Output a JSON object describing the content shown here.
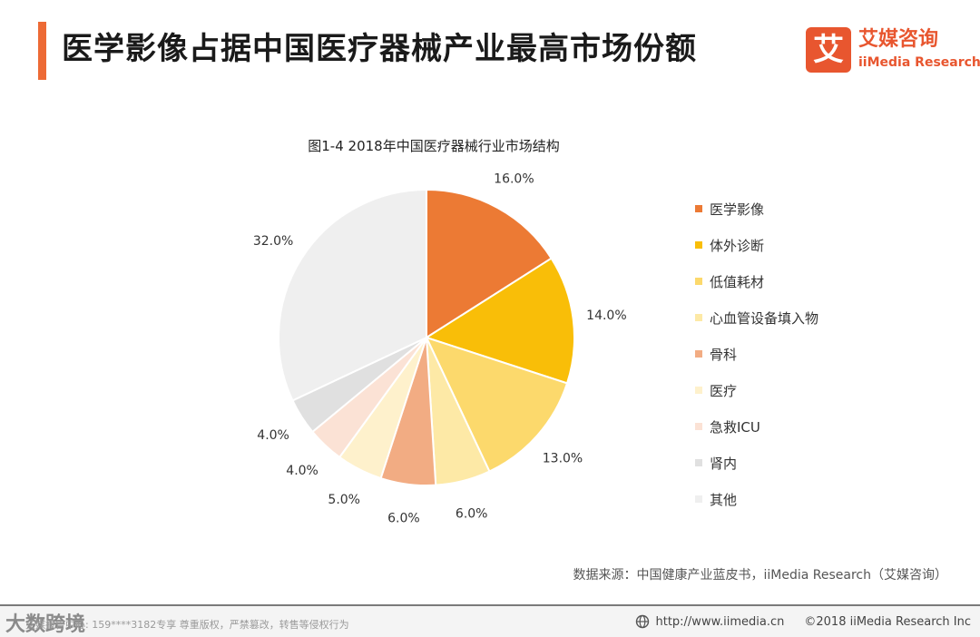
{
  "header": {
    "title": "医学影像占据中国医疗器械产业最高市场份额",
    "accent_color": "#ED6A35"
  },
  "brand": {
    "logo_char": "艾",
    "name_cn": "艾媒咨询",
    "name_en": "iiMedia Research",
    "color": "#E8562F"
  },
  "chart_data": {
    "type": "pie",
    "title": "图1-4 2018年中国医疗器械行业市场结构",
    "categories": [
      "医学影像",
      "体外诊断",
      "低值耗材",
      "心血管设备填入物",
      "骨科",
      "医疗",
      "急救ICU",
      "肾内",
      "其他"
    ],
    "values": [
      16.0,
      14.0,
      13.0,
      6.0,
      6.0,
      5.0,
      4.0,
      4.0,
      32.0
    ],
    "value_labels": [
      "16.0%",
      "14.0%",
      "13.0%",
      "6.0%",
      "6.0%",
      "5.0%",
      "4.0%",
      "4.0%",
      "32.0%"
    ],
    "colors": [
      "#EC7A34",
      "#F9BE08",
      "#FCD96C",
      "#FDE9A6",
      "#F2AC83",
      "#FEF1CC",
      "#FBE2D5",
      "#E0E0E0",
      "#EFEFEF"
    ],
    "start_angle_deg": 0,
    "direction": "clockwise",
    "legend_position": "right"
  },
  "source": "数据来源：中国健康产业蓝皮书，iiMedia Research（艾媒咨询）",
  "footer": {
    "watermark": "大数跨境",
    "note": "艾媒报告中心: 159****3182专享 尊重版权，严禁篡改，转售等侵权行为",
    "url": "http://www.iimedia.cn",
    "copyright": "©2018  iiMedia Research  Inc"
  }
}
